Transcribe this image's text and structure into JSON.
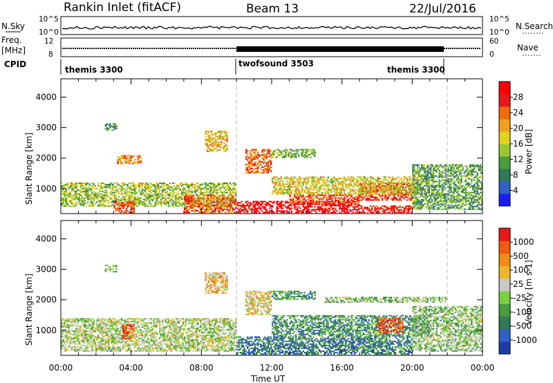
{
  "header": {
    "title": "Rankin Inlet (fitACF)",
    "beam": "Beam 13",
    "date": "22/Jul/2016"
  },
  "top_panels": {
    "nsky_label": "N.Sky",
    "nsky_ticks": [
      "10^5",
      "10^0"
    ],
    "nsearch_label": "N.Search",
    "nsearch_ticks": [
      "10^5",
      "10^0"
    ],
    "freq_label_1": "Freq.",
    "freq_label_2": "[MHz]",
    "freq_ticks": [
      "12",
      "8"
    ],
    "nave_label": "Nave",
    "nave_ticks": [
      "60",
      "0"
    ],
    "cpid_label": "CPID",
    "cpid_segments": [
      {
        "label": "themis 3300",
        "start_h": 0,
        "end_h": 10
      },
      {
        "label": "twofsound 3503",
        "start_h": 10,
        "end_h": 22
      },
      {
        "label": "themis 3300",
        "start_h": 22,
        "end_h": 24
      }
    ]
  },
  "chart_data": [
    {
      "type": "heatmap",
      "title": "Power",
      "xlabel": "Time UT",
      "ylabel": "Slant Range [km]",
      "x_range_h": [
        0,
        24
      ],
      "x_tick_labels": [
        "00:00",
        "04:00",
        "08:00",
        "12:00",
        "16:00",
        "20:00",
        "00:00"
      ],
      "ylim": [
        180,
        4600
      ],
      "y_ticks": [
        1000,
        2000,
        3000,
        4000
      ],
      "colorbar": {
        "label": "Power [dB]",
        "ticks": [
          "4",
          "8",
          "12",
          "16",
          "20",
          "24",
          "28"
        ],
        "colors": [
          "#1c1cf0",
          "#2f5fc8",
          "#2f7a5a",
          "#4a9c3c",
          "#9ac830",
          "#e6d21e",
          "#f0a020",
          "#f06a10",
          "#e81818",
          "#ff0000"
        ]
      },
      "vertical_markers_h": [
        10,
        22
      ],
      "regions": [
        {
          "t0": 10,
          "t1": 17,
          "r0": 200,
          "r1": 600,
          "level": 0.97
        },
        {
          "t0": 17,
          "t1": 20,
          "r0": 200,
          "r1": 450,
          "level": 0.9
        },
        {
          "t0": 13,
          "t1": 17,
          "r0": 500,
          "r1": 800,
          "level": 0.8
        },
        {
          "t0": 17,
          "t1": 20,
          "r0": 600,
          "r1": 1200,
          "level": 0.85
        },
        {
          "t0": 12,
          "t1": 21,
          "r0": 800,
          "r1": 1400,
          "level": 0.55
        },
        {
          "t0": 0,
          "t1": 10,
          "r0": 400,
          "r1": 1200,
          "level": 0.45
        },
        {
          "t0": 3,
          "t1": 4.2,
          "r0": 200,
          "r1": 600,
          "level": 0.85
        },
        {
          "t0": 3.2,
          "t1": 4.6,
          "r0": 1800,
          "r1": 2100,
          "level": 0.7
        },
        {
          "t0": 8.2,
          "t1": 9.5,
          "r0": 2200,
          "r1": 2900,
          "level": 0.6
        },
        {
          "t0": 10.5,
          "t1": 12,
          "r0": 1500,
          "r1": 2300,
          "level": 0.75
        },
        {
          "t0": 12,
          "t1": 14.5,
          "r0": 2000,
          "r1": 2300,
          "level": 0.4
        },
        {
          "t0": 20,
          "t1": 24,
          "r0": 300,
          "r1": 1800,
          "level": 0.35
        },
        {
          "t0": 2.5,
          "t1": 3.2,
          "r0": 2900,
          "r1": 3150,
          "level": 0.3
        },
        {
          "t0": 7,
          "t1": 10,
          "r0": 200,
          "r1": 800,
          "level": 0.75
        }
      ]
    },
    {
      "type": "heatmap",
      "title": "Velocity",
      "xlabel": "Time UT",
      "ylabel": "Slant Range [km]",
      "x_range_h": [
        0,
        24
      ],
      "x_tick_labels": [
        "00:00",
        "04:00",
        "08:00",
        "12:00",
        "16:00",
        "20:00",
        "00:00"
      ],
      "ylim": [
        180,
        4600
      ],
      "y_ticks": [
        1000,
        2000,
        3000,
        4000
      ],
      "colorbar": {
        "label": "Velocity [m s-1]",
        "ticks": [
          "1000",
          "500",
          "100",
          "25",
          "-25",
          "-100",
          "-500",
          "-1000"
        ],
        "colors": [
          "#1e3ca8",
          "#2f5fc8",
          "#2f7a5a",
          "#4a9c3c",
          "#7cd040",
          "#c8c8c8",
          "#f0b428",
          "#f08c18",
          "#f05a10",
          "#e81818"
        ]
      },
      "vertical_markers_h": [
        10,
        22
      ],
      "regions": [
        {
          "t0": 10,
          "t1": 17,
          "r0": 200,
          "r1": 800,
          "level": 0.22
        },
        {
          "t0": 12,
          "t1": 21,
          "r0": 800,
          "r1": 1500,
          "level": 0.3
        },
        {
          "t0": 17,
          "t1": 20,
          "r0": 200,
          "r1": 800,
          "level": 0.25
        },
        {
          "t0": 18,
          "t1": 19.5,
          "r0": 900,
          "r1": 1400,
          "level": 0.85
        },
        {
          "t0": 0,
          "t1": 10,
          "r0": 300,
          "r1": 1400,
          "level": 0.5
        },
        {
          "t0": 3.5,
          "t1": 4.2,
          "r0": 700,
          "r1": 1200,
          "level": 0.85
        },
        {
          "t0": 8.2,
          "t1": 9.5,
          "r0": 2200,
          "r1": 2900,
          "level": 0.65
        },
        {
          "t0": 10.5,
          "t1": 12,
          "r0": 1500,
          "r1": 2300,
          "level": 0.6
        },
        {
          "t0": 12,
          "t1": 14.5,
          "r0": 2000,
          "r1": 2300,
          "level": 0.3
        },
        {
          "t0": 20,
          "t1": 24,
          "r0": 300,
          "r1": 1800,
          "level": 0.45
        },
        {
          "t0": 2.5,
          "t1": 3.2,
          "r0": 2900,
          "r1": 3150,
          "level": 0.45
        },
        {
          "t0": 15,
          "t1": 22,
          "r0": 1900,
          "r1": 2100,
          "level": 0.45
        }
      ]
    }
  ]
}
